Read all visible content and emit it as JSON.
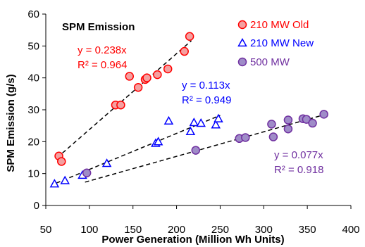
{
  "chart_data": {
    "type": "scatter",
    "title": "SPM Emission",
    "xlabel": "Power Generation (Million Wh Units)",
    "ylabel": "SPM Emission (g/s)",
    "xlim": [
      50,
      400
    ],
    "ylim": [
      0,
      60
    ],
    "xticks": [
      "50",
      "100",
      "150",
      "200",
      "250",
      "300",
      "350",
      "400"
    ],
    "yticks": [
      "0",
      "10",
      "20",
      "30",
      "40",
      "50",
      "60"
    ],
    "legend_position": "top-right",
    "grid": false,
    "series": [
      {
        "name": "210 MW Old",
        "marker": "circle",
        "stroke": "#ff0000",
        "fill": "#f4a0a0",
        "points": [
          [
            65,
            15.5
          ],
          [
            68,
            13.8
          ],
          [
            130,
            31.5
          ],
          [
            136,
            31.5
          ],
          [
            146,
            40.5
          ],
          [
            156,
            37
          ],
          [
            164,
            39.5
          ],
          [
            166,
            40
          ],
          [
            178,
            41
          ],
          [
            190,
            42.8
          ],
          [
            209,
            48.3
          ],
          [
            215,
            53
          ]
        ],
        "trendline": {
          "slope": 0.238,
          "x_range": [
            63,
            217
          ]
        }
      },
      {
        "name": "210 MW New",
        "marker": "triangle",
        "stroke": "#0000ff",
        "fill": "#ffffff",
        "points": [
          [
            60,
            6.8
          ],
          [
            72,
            7.8
          ],
          [
            92,
            9.5
          ],
          [
            120,
            13.2
          ],
          [
            176,
            19.5
          ],
          [
            179,
            20
          ],
          [
            191,
            26.5
          ],
          [
            216,
            23.2
          ],
          [
            220,
            26
          ],
          [
            228,
            25.8
          ],
          [
            245,
            25.3
          ],
          [
            248,
            27.2
          ]
        ],
        "trendline": {
          "slope": 0.113,
          "x_range": [
            62,
            250
          ]
        }
      },
      {
        "name": "500 MW",
        "marker": "circle",
        "stroke": "#7030a0",
        "fill": "#9f8cc8",
        "points": [
          [
            97,
            10.2
          ],
          [
            222,
            17.3
          ],
          [
            272,
            21
          ],
          [
            279,
            21.3
          ],
          [
            309,
            25.5
          ],
          [
            311,
            21.5
          ],
          [
            328,
            24
          ],
          [
            328,
            26.8
          ],
          [
            345,
            27.2
          ],
          [
            349,
            27
          ],
          [
            356,
            25.8
          ],
          [
            369,
            28.6
          ]
        ],
        "trendline": {
          "slope": 0.077,
          "x_range": [
            95,
            372
          ]
        }
      }
    ],
    "annotations": [
      {
        "series": 0,
        "lines": [
          "y = 0.238x",
          "R² = 0.964"
        ]
      },
      {
        "series": 1,
        "lines": [
          "y = 0.113x",
          "R² = 0.949"
        ]
      },
      {
        "series": 2,
        "lines": [
          "y = 0.077x",
          "R² = 0.918"
        ]
      }
    ]
  }
}
